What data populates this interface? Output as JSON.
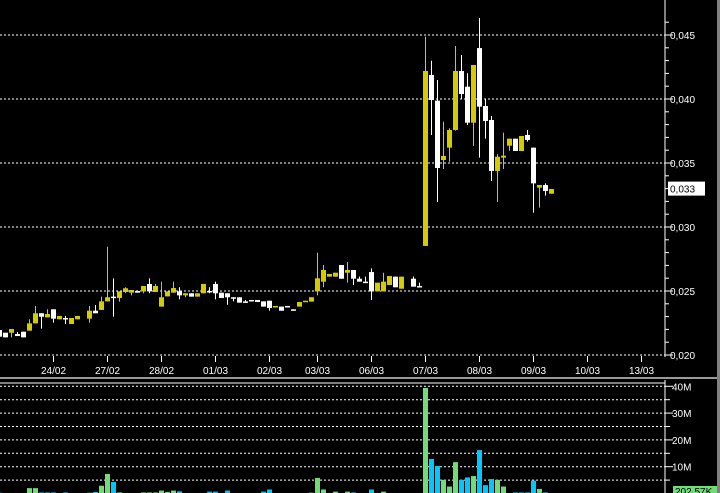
{
  "chart_data": [
    {
      "type": "candlestick",
      "panel": "price",
      "ylim": [
        0.02,
        0.0465
      ],
      "y_ticks": [
        {
          "value": 0.02,
          "label": "0,020"
        },
        {
          "value": 0.025,
          "label": "0,025"
        },
        {
          "value": 0.03,
          "label": "0,030"
        },
        {
          "value": 0.035,
          "label": "0,035"
        },
        {
          "value": 0.04,
          "label": "0,040"
        },
        {
          "value": 0.045,
          "label": "0,045"
        }
      ],
      "grid": true,
      "last_price_label": "0,033",
      "x_ticks": [
        {
          "bar": 9,
          "label": "24/02"
        },
        {
          "bar": 18,
          "label": "27/02"
        },
        {
          "bar": 27,
          "label": "28/02"
        },
        {
          "bar": 36,
          "label": "01/03"
        },
        {
          "bar": 45,
          "label": "02/03"
        },
        {
          "bar": 53,
          "label": "03/03"
        },
        {
          "bar": 62,
          "label": "06/03"
        },
        {
          "bar": 71,
          "label": "07/03"
        },
        {
          "bar": 80,
          "label": "08/03"
        },
        {
          "bar": 89,
          "label": "09/03"
        },
        {
          "bar": 98,
          "label": "10/03"
        },
        {
          "bar": 107,
          "label": "13/03"
        }
      ],
      "bar_range": [
        0,
        110
      ],
      "up_color": "#d4cc00",
      "down_color": "#ffffff",
      "candles_fields": [
        "bar",
        "open",
        "high",
        "low",
        "close"
      ],
      "candles": [
        [
          0,
          0.02195,
          0.02195,
          0.02143,
          0.02143
        ],
        [
          1,
          0.02174,
          0.02174,
          0.02138,
          0.02138
        ],
        [
          2,
          0.02174,
          0.02203,
          0.02138,
          0.02203
        ],
        [
          3,
          0.02164,
          0.0218,
          0.02148,
          0.02148
        ],
        [
          4,
          0.02182,
          0.02182,
          0.02138,
          0.02138
        ],
        [
          5,
          0.0219,
          0.02279,
          0.0219,
          0.02247
        ],
        [
          6,
          0.02247,
          0.02383,
          0.02247,
          0.02326
        ],
        [
          7,
          0.02326,
          0.02326,
          0.02206,
          0.02299
        ],
        [
          8,
          0.02294,
          0.02357,
          0.02294,
          0.0232
        ],
        [
          9,
          0.02357,
          0.02357,
          0.02253,
          0.02284
        ],
        [
          10,
          0.02279,
          0.02305,
          0.02279,
          0.02305
        ],
        [
          11,
          0.02289,
          0.02305,
          0.02242,
          0.02284
        ],
        [
          12,
          0.02242,
          0.02289,
          0.02242,
          0.02289
        ],
        [
          13,
          0.02279,
          0.02305,
          0.02279,
          0.02305
        ],
        [
          15,
          0.02284,
          0.02383,
          0.02253,
          0.02346
        ],
        [
          16,
          0.02346,
          0.02391,
          0.02326,
          0.02326
        ],
        [
          17,
          0.02352,
          0.02456,
          0.02352,
          0.02419
        ],
        [
          18,
          0.02419,
          0.02846,
          0.02419,
          0.02451
        ],
        [
          19,
          0.02456,
          0.02599,
          0.02299,
          0.02451
        ],
        [
          20,
          0.02445,
          0.02497,
          0.02417,
          0.02497
        ],
        [
          21,
          0.02492,
          0.02529,
          0.02482,
          0.02521
        ],
        [
          22,
          0.02487,
          0.02508,
          0.02466,
          0.02508
        ],
        [
          23,
          0.025,
          0.025,
          0.02487,
          0.02487
        ],
        [
          24,
          0.02497,
          0.02539,
          0.02482,
          0.02539
        ],
        [
          25,
          0.02555,
          0.02599,
          0.02482,
          0.02497
        ],
        [
          26,
          0.02492,
          0.02555,
          0.02492,
          0.02539
        ],
        [
          27,
          0.02378,
          0.02573,
          0.02378,
          0.02451
        ],
        [
          28,
          0.02458,
          0.02497,
          0.02458,
          0.02497
        ],
        [
          29,
          0.02487,
          0.02573,
          0.02487,
          0.02523
        ],
        [
          30,
          0.02497,
          0.02529,
          0.02435,
          0.02466
        ],
        [
          31,
          0.02466,
          0.02482,
          0.02451,
          0.02482
        ],
        [
          32,
          0.02482,
          0.02482,
          0.02456,
          0.02456
        ],
        [
          33,
          0.02456,
          0.02482,
          0.02456,
          0.02482
        ],
        [
          34,
          0.02482,
          0.02555,
          0.02482,
          0.02555
        ],
        [
          35,
          0.025,
          0.02529,
          0.02482,
          0.02497
        ],
        [
          36,
          0.02555,
          0.02573,
          0.02435,
          0.02482
        ],
        [
          37,
          0.02487,
          0.02487,
          0.02445,
          0.02445
        ],
        [
          38,
          0.02482,
          0.02482,
          0.02393,
          0.02451
        ],
        [
          39,
          0.02451,
          0.02451,
          0.02419,
          0.0244
        ],
        [
          40,
          0.02451,
          0.02451,
          0.02409,
          0.02409
        ],
        [
          41,
          0.02419,
          0.0243,
          0.02409,
          0.02409
        ],
        [
          42,
          0.0243,
          0.0243,
          0.02419,
          0.02419
        ],
        [
          43,
          0.0243,
          0.0243,
          0.02414,
          0.02414
        ],
        [
          44,
          0.02419,
          0.02419,
          0.02378,
          0.02378
        ],
        [
          45,
          0.02424,
          0.02424,
          0.02346,
          0.02367
        ],
        [
          46,
          0.02372,
          0.02383,
          0.02372,
          0.02383
        ],
        [
          47,
          0.02378,
          0.02378,
          0.02346,
          0.02346
        ],
        [
          48,
          0.02383,
          0.02383,
          0.02372,
          0.02372
        ],
        [
          49,
          0.02357,
          0.02357,
          0.02346,
          0.02346
        ],
        [
          50,
          0.02378,
          0.02414,
          0.02378,
          0.02414
        ],
        [
          51,
          0.02414,
          0.02424,
          0.02414,
          0.02424
        ],
        [
          52,
          0.02417,
          0.02451,
          0.02417,
          0.02451
        ],
        [
          53,
          0.02497,
          0.02799,
          0.02466,
          0.02599
        ],
        [
          54,
          0.02573,
          0.02703,
          0.02529,
          0.02664
        ],
        [
          55,
          0.02612,
          0.02633,
          0.02612,
          0.02633
        ],
        [
          56,
          0.02612,
          0.02643,
          0.02612,
          0.02643
        ],
        [
          57,
          0.02703,
          0.02703,
          0.02596,
          0.02596
        ],
        [
          58,
          0.02643,
          0.02727,
          0.02565,
          0.02664
        ],
        [
          59,
          0.02664,
          0.02664,
          0.02547,
          0.02596
        ],
        [
          60,
          0.02596,
          0.02612,
          0.02573,
          0.02573
        ],
        [
          61,
          0.02573,
          0.02612,
          0.02565,
          0.02565
        ],
        [
          62,
          0.02648,
          0.02677,
          0.0243,
          0.02497
        ],
        [
          63,
          0.02497,
          0.02565,
          0.02497,
          0.02565
        ],
        [
          64,
          0.02497,
          0.02643,
          0.02497,
          0.02573
        ],
        [
          65,
          0.02547,
          0.02617,
          0.02547,
          0.02617
        ],
        [
          66,
          0.02612,
          0.02612,
          0.02529,
          0.02529
        ],
        [
          67,
          0.02518,
          0.02612,
          0.02518,
          0.02612
        ],
        [
          69,
          0.02596,
          0.02612,
          0.02534,
          0.02534
        ],
        [
          70,
          0.02539,
          0.02565,
          0.02529,
          0.02529
        ],
        [
          71,
          0.02852,
          0.04487,
          0.02852,
          0.04219
        ],
        [
          72,
          0.04188,
          0.04299,
          0.03719,
          0.03992
        ],
        [
          73,
          0.03987,
          0.04148,
          0.03195,
          0.03461
        ],
        [
          74,
          0.03523,
          0.03823,
          0.03453,
          0.03555
        ],
        [
          75,
          0.0362,
          0.03771,
          0.0351,
          0.03758
        ],
        [
          76,
          0.03758,
          0.04414,
          0.03753,
          0.04219
        ],
        [
          77,
          0.04219,
          0.04344,
          0.03997,
          0.04039
        ],
        [
          78,
          0.04096,
          0.04201,
          0.03797,
          0.03815
        ],
        [
          79,
          0.03815,
          0.04266,
          0.03633,
          0.04266
        ],
        [
          80,
          0.04398,
          0.04633,
          0.03542,
          0.0394
        ],
        [
          81,
          0.03945,
          0.03997,
          0.0369,
          0.03828
        ],
        [
          82,
          0.03836,
          0.03867,
          0.03359,
          0.03438
        ],
        [
          83,
          0.03438,
          0.0357,
          0.03195,
          0.03549
        ],
        [
          84,
          0.03542,
          0.03737,
          0.03453,
          0.03557
        ],
        [
          85,
          0.03635,
          0.0369,
          0.03596,
          0.0369
        ],
        [
          86,
          0.0369,
          0.0369,
          0.03594,
          0.03594
        ],
        [
          87,
          0.03594,
          0.03711,
          0.03594,
          0.03711
        ],
        [
          88,
          0.03719,
          0.03758,
          0.03667,
          0.0368
        ],
        [
          89,
          0.0362,
          0.0362,
          0.03112,
          0.03341
        ],
        [
          90,
          0.03307,
          0.03328,
          0.03151,
          0.03328
        ],
        [
          91,
          0.03328,
          0.03341,
          0.03245,
          0.03281
        ],
        [
          92,
          0.0326,
          0.03297,
          0.0326,
          0.03297
        ]
      ]
    },
    {
      "type": "bar",
      "panel": "volume",
      "ylim": [
        0,
        40
      ],
      "unit": "M",
      "y_ticks": [
        {
          "value": 10,
          "label": "10M"
        },
        {
          "value": 20,
          "label": "20M"
        },
        {
          "value": 30,
          "label": "30M"
        },
        {
          "value": 40,
          "label": "40M"
        }
      ],
      "grid_step": 5,
      "grid": true,
      "last_volume_label": "202,57K",
      "up_color": "#70dc78",
      "down_color": "#00c8ff",
      "bars_fields": [
        "bar",
        "volume_millions",
        "direction"
      ],
      "bars": [
        [
          0,
          0.3,
          "down"
        ],
        [
          5,
          2.0,
          "up"
        ],
        [
          6,
          2.0,
          "up"
        ],
        [
          7,
          0.4,
          "down"
        ],
        [
          8,
          0.4,
          "down"
        ],
        [
          9,
          0.4,
          "down"
        ],
        [
          11,
          0.4,
          "down"
        ],
        [
          15,
          0.3,
          "up"
        ],
        [
          16,
          0.6,
          "down"
        ],
        [
          17,
          2.9,
          "up"
        ],
        [
          18,
          7.3,
          "up"
        ],
        [
          19,
          4.3,
          "down"
        ],
        [
          20,
          0.4,
          "up"
        ],
        [
          24,
          0.4,
          "up"
        ],
        [
          25,
          0.4,
          "up"
        ],
        [
          26,
          0.4,
          "up"
        ],
        [
          27,
          1.1,
          "up"
        ],
        [
          28,
          0.6,
          "up"
        ],
        [
          29,
          1.1,
          "up"
        ],
        [
          30,
          0.8,
          "down"
        ],
        [
          35,
          0.7,
          "down"
        ],
        [
          36,
          0.7,
          "down"
        ],
        [
          38,
          1.1,
          "down"
        ],
        [
          44,
          0.7,
          "down"
        ],
        [
          45,
          1.5,
          "down"
        ],
        [
          52,
          0.3,
          "up"
        ],
        [
          53,
          5.8,
          "up"
        ],
        [
          54,
          1.5,
          "up"
        ],
        [
          56,
          0.7,
          "up"
        ],
        [
          58,
          0.7,
          "up"
        ],
        [
          59,
          0.4,
          "down"
        ],
        [
          62,
          1.5,
          "down"
        ],
        [
          64,
          0.7,
          "up"
        ],
        [
          71,
          39.4,
          "up"
        ],
        [
          72,
          12.9,
          "down"
        ],
        [
          73,
          10.3,
          "down"
        ],
        [
          74,
          5.1,
          "up"
        ],
        [
          75,
          2.6,
          "up"
        ],
        [
          76,
          11.7,
          "up"
        ],
        [
          77,
          5.1,
          "down"
        ],
        [
          78,
          6.0,
          "down"
        ],
        [
          79,
          6.5,
          "up"
        ],
        [
          80,
          16.2,
          "down"
        ],
        [
          81,
          3.1,
          "down"
        ],
        [
          82,
          5.4,
          "down"
        ],
        [
          83,
          5.1,
          "up"
        ],
        [
          84,
          2.6,
          "up"
        ],
        [
          86,
          0.4,
          "down"
        ],
        [
          87,
          0.4,
          "down"
        ],
        [
          88,
          0.4,
          "down"
        ],
        [
          89,
          4.8,
          "down"
        ],
        [
          90,
          1.7,
          "up"
        ],
        [
          91,
          0.4,
          "down"
        ]
      ]
    }
  ]
}
